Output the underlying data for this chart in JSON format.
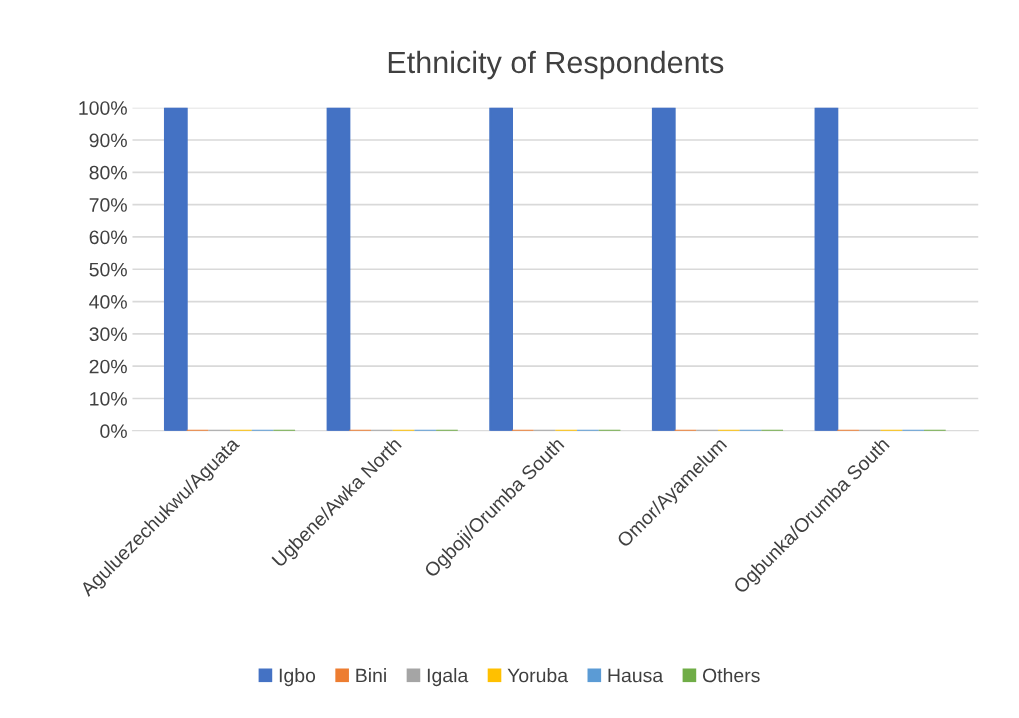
{
  "chart_data": {
    "type": "bar",
    "title": "Ethnicity of Respondents",
    "categories": [
      "Aguluezechukwu/Aguata",
      "Ugbene/Awka North",
      "Ogboji/Orumba South",
      "Omor/Ayamelum",
      "Ogbunka/Orumba South"
    ],
    "series": [
      {
        "name": "Igbo",
        "color": "#4472c4",
        "values": [
          100,
          100,
          100,
          100,
          100
        ]
      },
      {
        "name": "Bini",
        "color": "#ed7d31",
        "values": [
          0,
          0,
          0,
          0,
          0
        ]
      },
      {
        "name": "Igala",
        "color": "#a5a5a5",
        "values": [
          0,
          0,
          0,
          0,
          0
        ]
      },
      {
        "name": "Yoruba",
        "color": "#ffc000",
        "values": [
          0,
          0,
          0,
          0,
          0
        ]
      },
      {
        "name": "Hausa",
        "color": "#5b9bd5",
        "values": [
          0,
          0,
          0,
          0,
          0
        ]
      },
      {
        "name": "Others",
        "color": "#70ad47",
        "values": [
          0,
          0,
          0,
          0,
          0
        ]
      }
    ],
    "ylim": [
      0,
      100
    ],
    "yticks": [
      {
        "value": 0,
        "label": "0%"
      },
      {
        "value": 10,
        "label": "10%"
      },
      {
        "value": 20,
        "label": "20%"
      },
      {
        "value": 30,
        "label": "30%"
      },
      {
        "value": 40,
        "label": "40%"
      },
      {
        "value": 50,
        "label": "50%"
      },
      {
        "value": 60,
        "label": "60%"
      },
      {
        "value": 70,
        "label": "70%"
      },
      {
        "value": 80,
        "label": "80%"
      },
      {
        "value": 90,
        "label": "90%"
      },
      {
        "value": 100,
        "label": "100%"
      }
    ],
    "grid": "y",
    "legend": "bottom"
  }
}
